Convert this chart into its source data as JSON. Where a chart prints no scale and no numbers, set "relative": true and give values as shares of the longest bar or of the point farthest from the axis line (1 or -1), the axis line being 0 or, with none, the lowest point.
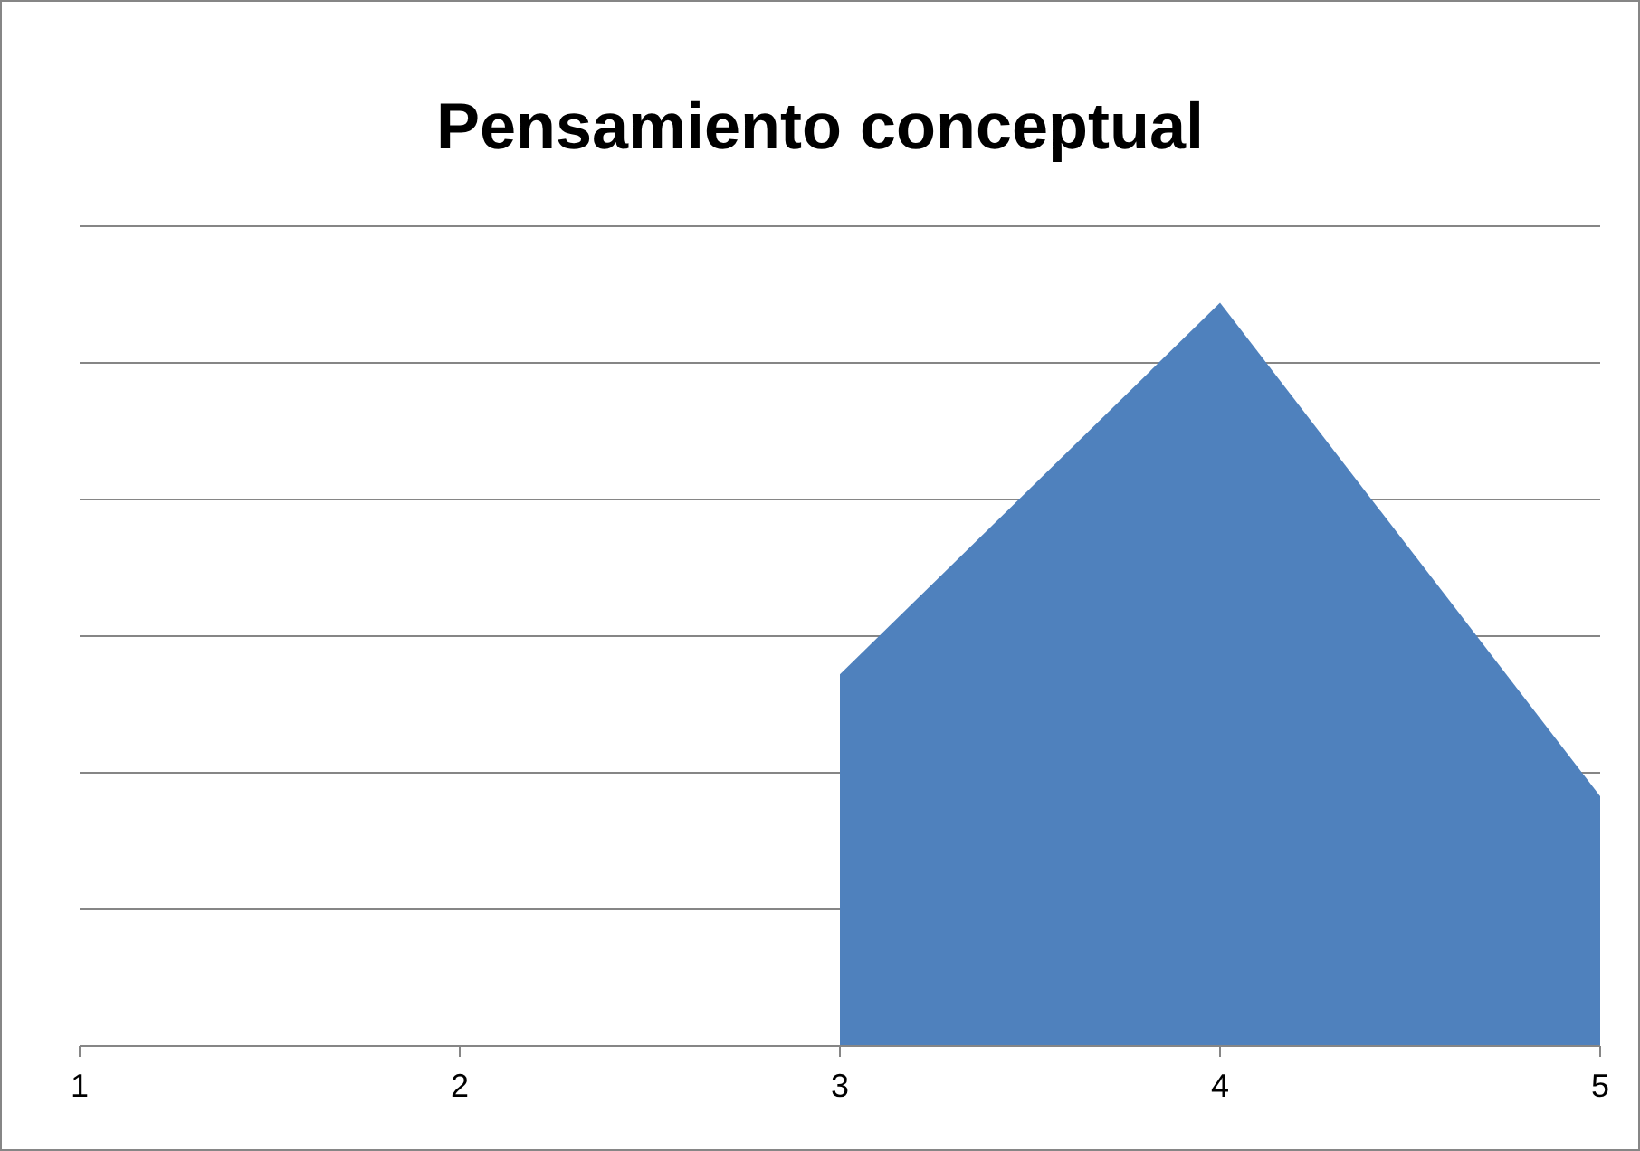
{
  "chart_data": {
    "type": "area",
    "title": "Pensamiento conceptual",
    "categories": [
      "1",
      "2",
      "3",
      "4",
      "5"
    ],
    "values": [
      null,
      null,
      0.5,
      1,
      0.336
    ],
    "color": "#4f81bd",
    "relative": true,
    "grid": true
  }
}
